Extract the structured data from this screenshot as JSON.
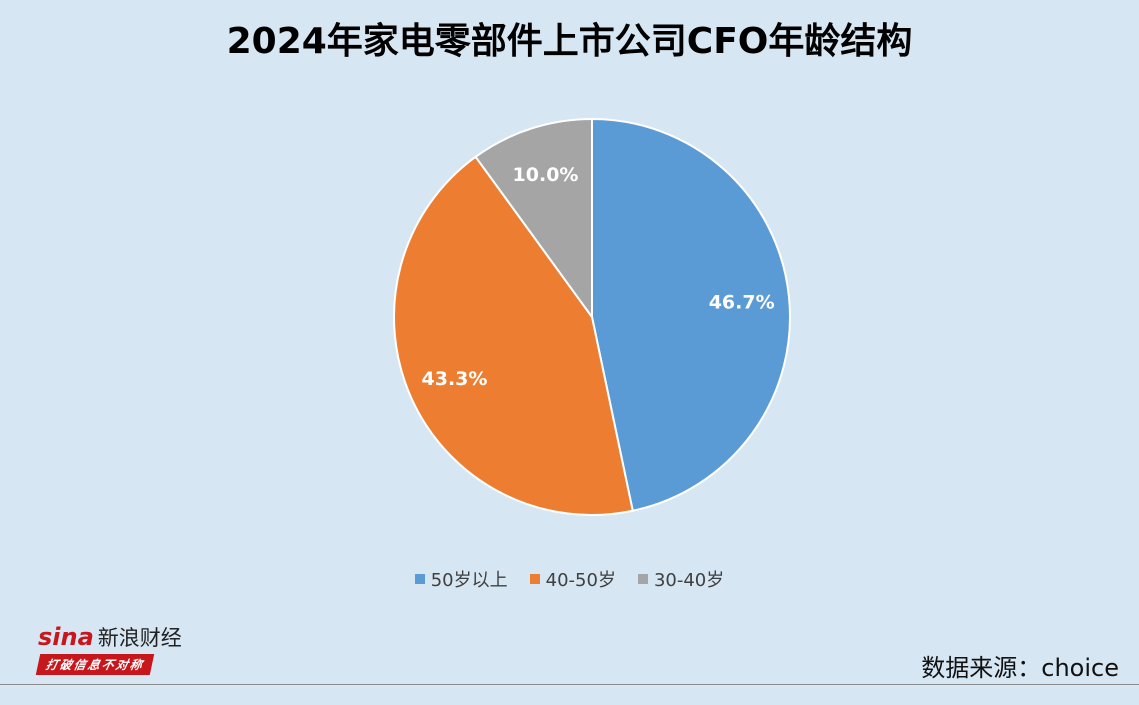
{
  "title": "2024年家电零部件上市公司CFO年龄结构",
  "chart_data": {
    "type": "pie",
    "title": "2024年家电零部件上市公司CFO年龄结构",
    "slices": [
      {
        "label": "50岁以上",
        "value": 46.7,
        "display": "46.7%",
        "color": "#5b9bd5"
      },
      {
        "label": "40-50岁",
        "value": 43.3,
        "display": "43.3%",
        "color": "#ed7d31"
      },
      {
        "label": "30-40岁",
        "value": 10.0,
        "display": "10.0%",
        "color": "#a5a5a5"
      }
    ],
    "legend_position": "bottom",
    "data_labels": true
  },
  "logo": {
    "brand": "sina",
    "name": "新浪财经",
    "tagline": "打破信息不对称"
  },
  "source": "数据来源：choice"
}
